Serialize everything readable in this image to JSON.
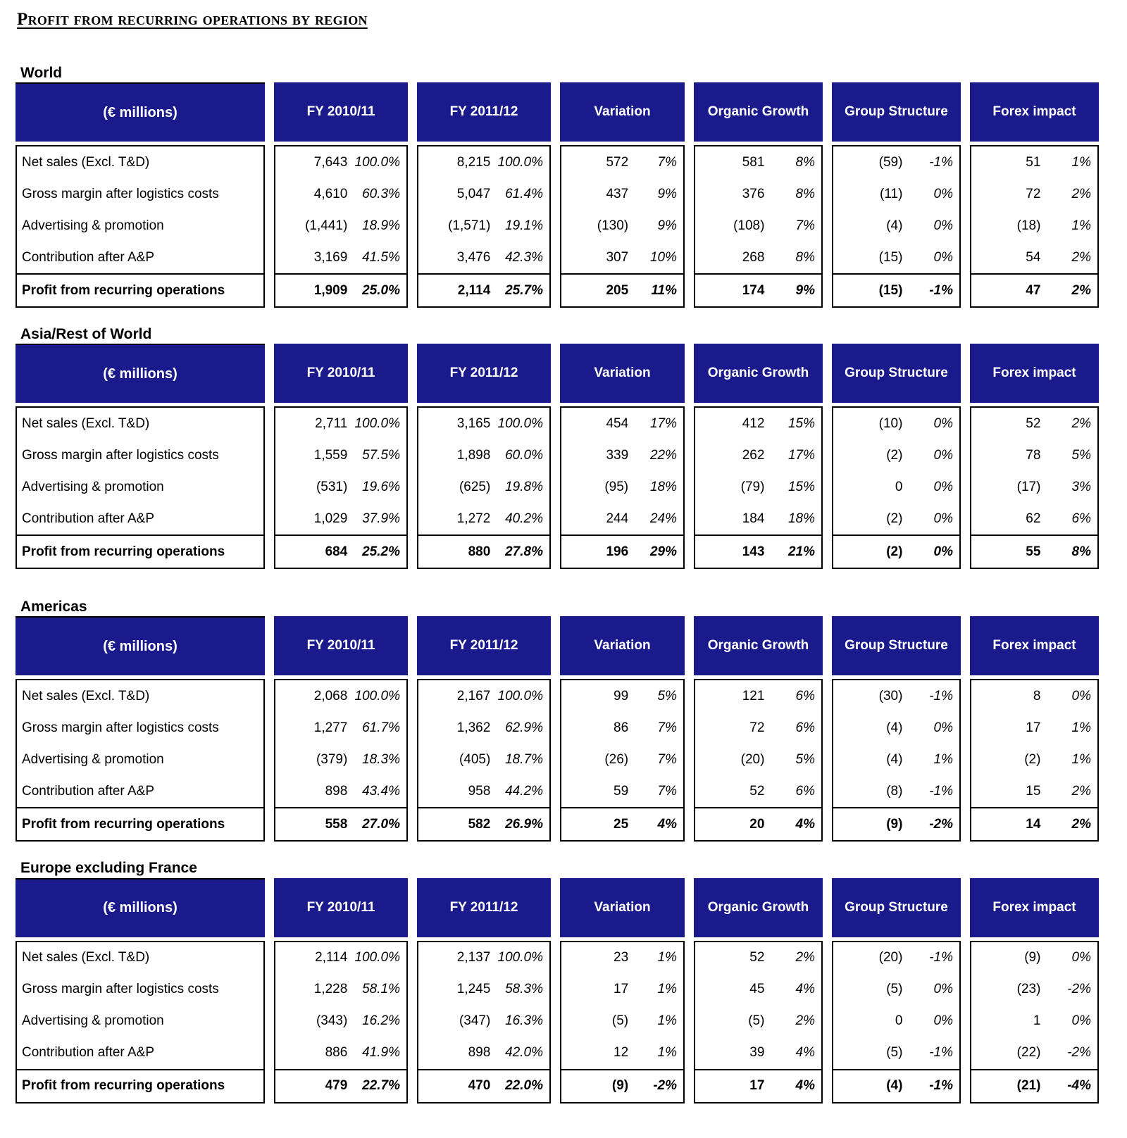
{
  "page_title": "Profit from recurring operations by region",
  "header_color": "#1A1A8C",
  "tables": [
    {
      "section": "World",
      "columns": [
        "(€ millions)",
        "FY 2010/11",
        "FY 2011/12",
        "Variation",
        "Organic Growth",
        "Group Structure",
        "Forex impact"
      ],
      "rows": [
        {
          "label": "Net sales (Excl. T&D)",
          "cells": [
            [
              "7,643",
              "100.0%"
            ],
            [
              "8,215",
              "100.0%"
            ],
            [
              "572",
              "7%"
            ],
            [
              "581",
              "8%"
            ],
            [
              "(59)",
              "-1%"
            ],
            [
              "51",
              "1%"
            ]
          ]
        },
        {
          "label": "Gross margin after logistics costs",
          "cells": [
            [
              "4,610",
              "60.3%"
            ],
            [
              "5,047",
              "61.4%"
            ],
            [
              "437",
              "9%"
            ],
            [
              "376",
              "8%"
            ],
            [
              "(11)",
              "0%"
            ],
            [
              "72",
              "2%"
            ]
          ]
        },
        {
          "label": "Advertising & promotion",
          "cells": [
            [
              "(1,441)",
              "18.9%"
            ],
            [
              "(1,571)",
              "19.1%"
            ],
            [
              "(130)",
              "9%"
            ],
            [
              "(108)",
              "7%"
            ],
            [
              "(4)",
              "0%"
            ],
            [
              "(18)",
              "1%"
            ]
          ]
        },
        {
          "label": "Contribution after A&P",
          "cells": [
            [
              "3,169",
              "41.5%"
            ],
            [
              "3,476",
              "42.3%"
            ],
            [
              "307",
              "10%"
            ],
            [
              "268",
              "8%"
            ],
            [
              "(15)",
              "0%"
            ],
            [
              "54",
              "2%"
            ]
          ]
        }
      ],
      "total": {
        "label": "Profit from recurring operations",
        "cells": [
          [
            "1,909",
            "25.0%"
          ],
          [
            "2,114",
            "25.7%"
          ],
          [
            "205",
            "11%"
          ],
          [
            "174",
            "9%"
          ],
          [
            "(15)",
            "-1%"
          ],
          [
            "47",
            "2%"
          ]
        ]
      }
    },
    {
      "section": "Asia/Rest of World",
      "columns": [
        "(€ millions)",
        "FY 2010/11",
        "FY 2011/12",
        "Variation",
        "Organic Growth",
        "Group Structure",
        "Forex impact"
      ],
      "rows": [
        {
          "label": "Net sales (Excl. T&D)",
          "cells": [
            [
              "2,711",
              "100.0%"
            ],
            [
              "3,165",
              "100.0%"
            ],
            [
              "454",
              "17%"
            ],
            [
              "412",
              "15%"
            ],
            [
              "(10)",
              "0%"
            ],
            [
              "52",
              "2%"
            ]
          ]
        },
        {
          "label": "Gross margin after logistics costs",
          "cells": [
            [
              "1,559",
              "57.5%"
            ],
            [
              "1,898",
              "60.0%"
            ],
            [
              "339",
              "22%"
            ],
            [
              "262",
              "17%"
            ],
            [
              "(2)",
              "0%"
            ],
            [
              "78",
              "5%"
            ]
          ]
        },
        {
          "label": "Advertising & promotion",
          "cells": [
            [
              "(531)",
              "19.6%"
            ],
            [
              "(625)",
              "19.8%"
            ],
            [
              "(95)",
              "18%"
            ],
            [
              "(79)",
              "15%"
            ],
            [
              "0",
              "0%"
            ],
            [
              "(17)",
              "3%"
            ]
          ]
        },
        {
          "label": "Contribution after A&P",
          "cells": [
            [
              "1,029",
              "37.9%"
            ],
            [
              "1,272",
              "40.2%"
            ],
            [
              "244",
              "24%"
            ],
            [
              "184",
              "18%"
            ],
            [
              "(2)",
              "0%"
            ],
            [
              "62",
              "6%"
            ]
          ]
        }
      ],
      "total": {
        "label": "Profit from recurring operations",
        "cells": [
          [
            "684",
            "25.2%"
          ],
          [
            "880",
            "27.8%"
          ],
          [
            "196",
            "29%"
          ],
          [
            "143",
            "21%"
          ],
          [
            "(2)",
            "0%"
          ],
          [
            "55",
            "8%"
          ]
        ]
      }
    },
    {
      "section": "Americas",
      "columns": [
        "(€ millions)",
        "FY 2010/11",
        "FY 2011/12",
        "Variation",
        "Organic Growth",
        "Group Structure",
        "Forex impact"
      ],
      "rows": [
        {
          "label": "Net sales (Excl. T&D)",
          "cells": [
            [
              "2,068",
              "100.0%"
            ],
            [
              "2,167",
              "100.0%"
            ],
            [
              "99",
              "5%"
            ],
            [
              "121",
              "6%"
            ],
            [
              "(30)",
              "-1%"
            ],
            [
              "8",
              "0%"
            ]
          ]
        },
        {
          "label": "Gross margin after logistics costs",
          "cells": [
            [
              "1,277",
              "61.7%"
            ],
            [
              "1,362",
              "62.9%"
            ],
            [
              "86",
              "7%"
            ],
            [
              "72",
              "6%"
            ],
            [
              "(4)",
              "0%"
            ],
            [
              "17",
              "1%"
            ]
          ]
        },
        {
          "label": "Advertising & promotion",
          "cells": [
            [
              "(379)",
              "18.3%"
            ],
            [
              "(405)",
              "18.7%"
            ],
            [
              "(26)",
              "7%"
            ],
            [
              "(20)",
              "5%"
            ],
            [
              "(4)",
              "1%"
            ],
            [
              "(2)",
              "1%"
            ]
          ]
        },
        {
          "label": "Contribution after A&P",
          "cells": [
            [
              "898",
              "43.4%"
            ],
            [
              "958",
              "44.2%"
            ],
            [
              "59",
              "7%"
            ],
            [
              "52",
              "6%"
            ],
            [
              "(8)",
              "-1%"
            ],
            [
              "15",
              "2%"
            ]
          ]
        }
      ],
      "total": {
        "label": "Profit from recurring operations",
        "cells": [
          [
            "558",
            "27.0%"
          ],
          [
            "582",
            "26.9%"
          ],
          [
            "25",
            "4%"
          ],
          [
            "20",
            "4%"
          ],
          [
            "(9)",
            "-2%"
          ],
          [
            "14",
            "2%"
          ]
        ]
      }
    },
    {
      "section": "Europe excluding France",
      "columns": [
        "(€ millions)",
        "FY 2010/11",
        "FY 2011/12",
        "Variation",
        "Organic Growth",
        "Group Structure",
        "Forex impact"
      ],
      "rows": [
        {
          "label": "Net sales (Excl. T&D)",
          "cells": [
            [
              "2,114",
              "100.0%"
            ],
            [
              "2,137",
              "100.0%"
            ],
            [
              "23",
              "1%"
            ],
            [
              "52",
              "2%"
            ],
            [
              "(20)",
              "-1%"
            ],
            [
              "(9)",
              "0%"
            ]
          ]
        },
        {
          "label": "Gross margin after logistics costs",
          "cells": [
            [
              "1,228",
              "58.1%"
            ],
            [
              "1,245",
              "58.3%"
            ],
            [
              "17",
              "1%"
            ],
            [
              "45",
              "4%"
            ],
            [
              "(5)",
              "0%"
            ],
            [
              "(23)",
              "-2%"
            ]
          ]
        },
        {
          "label": "Advertising & promotion",
          "cells": [
            [
              "(343)",
              "16.2%"
            ],
            [
              "(347)",
              "16.3%"
            ],
            [
              "(5)",
              "1%"
            ],
            [
              "(5)",
              "2%"
            ],
            [
              "0",
              "0%"
            ],
            [
              "1",
              "0%"
            ]
          ]
        },
        {
          "label": "Contribution after A&P",
          "cells": [
            [
              "886",
              "41.9%"
            ],
            [
              "898",
              "42.0%"
            ],
            [
              "12",
              "1%"
            ],
            [
              "39",
              "4%"
            ],
            [
              "(5)",
              "-1%"
            ],
            [
              "(22)",
              "-2%"
            ]
          ]
        }
      ],
      "total": {
        "label": "Profit from recurring operations",
        "cells": [
          [
            "479",
            "22.7%"
          ],
          [
            "470",
            "22.0%"
          ],
          [
            "(9)",
            "-2%"
          ],
          [
            "17",
            "4%"
          ],
          [
            "(4)",
            "-1%"
          ],
          [
            "(21)",
            "-4%"
          ]
        ]
      }
    }
  ]
}
